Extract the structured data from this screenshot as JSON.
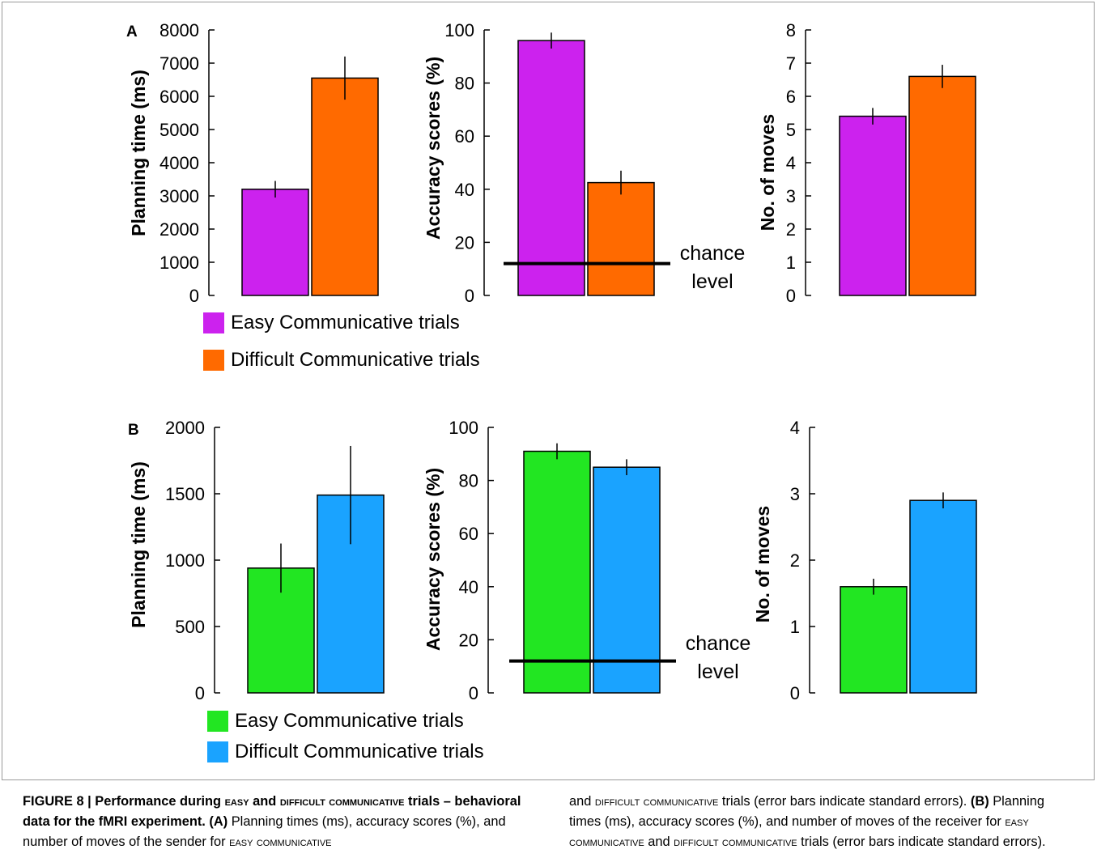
{
  "chart_data": [
    {
      "panel": "A",
      "type": "bar",
      "ylabel": "Planning time (ms)",
      "categories": [
        "Easy Communicative trials",
        "Difficult Communicative trials"
      ],
      "values": [
        3200,
        6550
      ],
      "errors": [
        250,
        650
      ],
      "ylim": [
        0,
        8000
      ],
      "yticks": [
        "0",
        "1000",
        "2000",
        "3000",
        "4000",
        "5000",
        "6000",
        "7000",
        "8000"
      ],
      "colors": [
        "#cc22ee",
        "#ff6a00"
      ]
    },
    {
      "panel": "A",
      "type": "bar",
      "ylabel": "Accuracy scores (%)",
      "categories": [
        "Easy Communicative trials",
        "Difficult Communicative trials"
      ],
      "values": [
        96,
        42.5
      ],
      "errors": [
        3,
        4.5
      ],
      "ylim": [
        0,
        100
      ],
      "yticks": [
        "0",
        "20",
        "40",
        "60",
        "80",
        "100"
      ],
      "colors": [
        "#cc22ee",
        "#ff6a00"
      ],
      "reference_line": {
        "value": 12,
        "label_lines": [
          "chance",
          "level"
        ]
      }
    },
    {
      "panel": "A",
      "type": "bar",
      "ylabel": "No. of moves",
      "categories": [
        "Easy Communicative trials",
        "Difficult Communicative trials"
      ],
      "values": [
        5.4,
        6.6
      ],
      "errors": [
        0.25,
        0.35
      ],
      "ylim": [
        0,
        8
      ],
      "yticks": [
        "0",
        "1",
        "2",
        "3",
        "4",
        "5",
        "6",
        "7",
        "8"
      ],
      "colors": [
        "#cc22ee",
        "#ff6a00"
      ]
    },
    {
      "panel": "B",
      "type": "bar",
      "ylabel": "Planning time (ms)",
      "categories": [
        "Easy Communicative trials",
        "Difficult Communicative trials"
      ],
      "values": [
        940,
        1490
      ],
      "errors": [
        185,
        370
      ],
      "ylim": [
        0,
        2000
      ],
      "yticks": [
        "0",
        "500",
        "1000",
        "1500",
        "2000"
      ],
      "colors": [
        "#22e622",
        "#1aa3ff"
      ]
    },
    {
      "panel": "B",
      "type": "bar",
      "ylabel": "Accuracy scores (%)",
      "categories": [
        "Easy Communicative trials",
        "Difficult Communicative trials"
      ],
      "values": [
        91,
        85
      ],
      "errors": [
        3,
        3
      ],
      "ylim": [
        0,
        100
      ],
      "yticks": [
        "0",
        "20",
        "40",
        "60",
        "80",
        "100"
      ],
      "colors": [
        "#22e622",
        "#1aa3ff"
      ],
      "reference_line": {
        "value": 12,
        "label_lines": [
          "chance",
          "level"
        ]
      }
    },
    {
      "panel": "B",
      "type": "bar",
      "ylabel": "No. of moves",
      "categories": [
        "Easy Communicative trials",
        "Difficult Communicative trials"
      ],
      "values": [
        1.6,
        2.9
      ],
      "errors": [
        0.12,
        0.12
      ],
      "ylim": [
        0,
        4
      ],
      "yticks": [
        "0",
        "1",
        "2",
        "3",
        "4"
      ],
      "colors": [
        "#22e622",
        "#1aa3ff"
      ]
    }
  ],
  "panel_labels": {
    "a": "A",
    "b": "B"
  },
  "legend": {
    "a": [
      {
        "label": "Easy Communicative trials",
        "color": "#cc22ee"
      },
      {
        "label": "Difficult Communicative trials",
        "color": "#ff6a00"
      }
    ],
    "b": [
      {
        "label": "Easy Communicative trials",
        "color": "#22e622"
      },
      {
        "label": "Difficult Communicative trials",
        "color": "#1aa3ff"
      }
    ]
  },
  "caption": {
    "fig_label": "FIGURE 8 | Performance during ",
    "t1_sc": "EASY",
    "t2": " and ",
    "t3_sc": "DIFFICULT COMMUNICATIVE",
    "t4": " trials – behavioral data for the fMRI experiment.",
    "a_tag": " (A)",
    "a_text": " Planning times (ms), accuracy scores (%), and number of moves of the sender for ",
    "a_sc1": "EASY COMMUNICATIVE",
    "c2_t1": "and ",
    "c2_sc1": "DIFFICULT COMMUNICATIVE",
    "c2_t2": " trials (error bars indicate standard errors). ",
    "b_tag": "(B)",
    "b_text": " Planning times (ms), accuracy scores (%), and number of moves of the receiver for ",
    "b_sc1": "EASY COMMUNICATIVE",
    "b_t2": " and ",
    "b_sc2": "DIFFICULT COMMUNICATIVE",
    "b_t3": " trials (error bars indicate standard errors)."
  }
}
